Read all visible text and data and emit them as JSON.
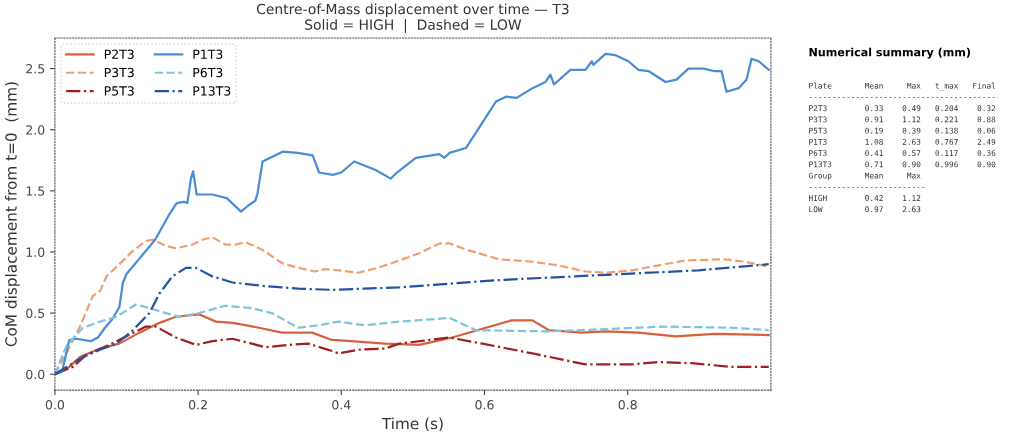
{
  "chart_data": {
    "type": "line",
    "title": "Centre-of-Mass displacement over time — T3\nSolid = HIGH  |  Dashed = LOW",
    "xlabel": "Time (s)",
    "ylabel": "CoM displacement from t=0  (mm)",
    "xlim": [
      0,
      1.0
    ],
    "ylim": [
      -0.13,
      2.75
    ],
    "xticks": [
      {
        "value": 0,
        "label": "0.0"
      },
      0.2,
      0.4,
      0.6,
      0.8
    ],
    "yticks": [
      {
        "value": 0,
        "label": "0.0"
      },
      0.5,
      {
        "value": 1,
        "label": "1.0"
      },
      1.5,
      {
        "value": 2,
        "label": "2.0"
      },
      2.5
    ],
    "grid": false,
    "legend": "top left",
    "marker": "none",
    "series": [
      {
        "name": "P2T3",
        "color": "#d6603c",
        "line_style": "solid",
        "x": [
          0,
          0.016,
          0.035,
          0.063,
          0.09,
          0.118,
          0.146,
          0.169,
          0.201,
          0.225,
          0.248,
          0.285,
          0.317,
          0.359,
          0.387,
          0.414,
          0.461,
          0.509,
          0.555,
          0.602,
          0.638,
          0.667,
          0.69,
          0.736,
          0.769,
          0.815,
          0.867,
          0.922,
          0.997
        ],
        "values": [
          0,
          0.04,
          0.14,
          0.21,
          0.25,
          0.34,
          0.42,
          0.47,
          0.49,
          0.43,
          0.42,
          0.38,
          0.34,
          0.34,
          0.28,
          0.27,
          0.25,
          0.24,
          0.3,
          0.38,
          0.44,
          0.44,
          0.36,
          0.34,
          0.35,
          0.34,
          0.31,
          0.33,
          0.32
        ]
      },
      {
        "name": "P3T3",
        "color": "#f0a070",
        "line_style": "dashed",
        "x": [
          0,
          0.016,
          0.035,
          0.053,
          0.063,
          0.072,
          0.09,
          0.109,
          0.127,
          0.137,
          0.155,
          0.169,
          0.192,
          0.206,
          0.22,
          0.238,
          0.252,
          0.266,
          0.289,
          0.317,
          0.34,
          0.363,
          0.377,
          0.396,
          0.424,
          0.451,
          0.481,
          0.509,
          0.537,
          0.551,
          0.574,
          0.62,
          0.667,
          0.704,
          0.741,
          0.769,
          0.806,
          0.843,
          0.881,
          0.936,
          0.964,
          0.997
        ],
        "values": [
          0,
          0.17,
          0.39,
          0.64,
          0.68,
          0.8,
          0.9,
          1.01,
          1.09,
          1.1,
          1.05,
          1.03,
          1.06,
          1.1,
          1.12,
          1.06,
          1.06,
          1.08,
          1.02,
          0.91,
          0.87,
          0.84,
          0.86,
          0.85,
          0.83,
          0.87,
          0.93,
          0.99,
          1.07,
          1.07,
          1.02,
          0.94,
          0.92,
          0.89,
          0.84,
          0.83,
          0.85,
          0.89,
          0.93,
          0.94,
          0.92,
          0.88
        ]
      },
      {
        "name": "P5T3",
        "color": "#a02020",
        "line_style": "dashdot",
        "x": [
          0,
          0.025,
          0.044,
          0.072,
          0.1,
          0.127,
          0.141,
          0.169,
          0.197,
          0.22,
          0.248,
          0.275,
          0.294,
          0.326,
          0.354,
          0.387,
          0.396,
          0.424,
          0.461,
          0.481,
          0.551,
          0.597,
          0.667,
          0.741,
          0.806,
          0.843,
          0.889,
          0.945,
          0.997
        ],
        "values": [
          0,
          0.06,
          0.16,
          0.23,
          0.31,
          0.39,
          0.39,
          0.3,
          0.24,
          0.27,
          0.29,
          0.25,
          0.22,
          0.24,
          0.25,
          0.19,
          0.17,
          0.2,
          0.21,
          0.25,
          0.3,
          0.25,
          0.17,
          0.08,
          0.08,
          0.1,
          0.09,
          0.06,
          0.06
        ]
      },
      {
        "name": "P1T3",
        "color": "#4a8cd6",
        "line_style": "solid",
        "x": [
          0,
          0.01,
          0.02,
          0.03,
          0.04,
          0.05,
          0.06,
          0.07,
          0.08,
          0.09,
          0.095,
          0.1,
          0.12,
          0.14,
          0.16,
          0.17,
          0.18,
          0.185,
          0.19,
          0.193,
          0.198,
          0.22,
          0.24,
          0.26,
          0.27,
          0.28,
          0.283,
          0.29,
          0.318,
          0.339,
          0.36,
          0.369,
          0.388,
          0.4,
          0.418,
          0.448,
          0.469,
          0.476,
          0.504,
          0.537,
          0.544,
          0.551,
          0.574,
          0.616,
          0.63,
          0.645,
          0.667,
          0.685,
          0.692,
          0.697,
          0.72,
          0.741,
          0.75,
          0.752,
          0.769,
          0.783,
          0.801,
          0.815,
          0.829,
          0.853,
          0.868,
          0.885,
          0.906,
          0.92,
          0.931,
          0.938,
          0.955,
          0.966,
          0.973,
          0.983,
          0.997
        ],
        "values": [
          0,
          0.02,
          0.28,
          0.29,
          0.28,
          0.27,
          0.3,
          0.38,
          0.45,
          0.55,
          0.75,
          0.82,
          0.96,
          1.1,
          1.31,
          1.4,
          1.41,
          1.4,
          1.6,
          1.66,
          1.47,
          1.47,
          1.44,
          1.33,
          1.38,
          1.42,
          1.48,
          1.74,
          1.82,
          1.81,
          1.79,
          1.65,
          1.63,
          1.65,
          1.74,
          1.67,
          1.6,
          1.64,
          1.77,
          1.8,
          1.77,
          1.81,
          1.85,
          2.23,
          2.27,
          2.26,
          2.34,
          2.39,
          2.45,
          2.37,
          2.49,
          2.49,
          2.56,
          2.53,
          2.62,
          2.61,
          2.56,
          2.49,
          2.48,
          2.39,
          2.41,
          2.5,
          2.5,
          2.48,
          2.48,
          2.31,
          2.34,
          2.41,
          2.58,
          2.56,
          2.49
        ]
      },
      {
        "name": "P6T3",
        "color": "#7cc4e0",
        "line_style": "dashed",
        "x": [
          0,
          0.016,
          0.039,
          0.063,
          0.086,
          0.113,
          0.132,
          0.155,
          0.174,
          0.201,
          0.238,
          0.275,
          0.303,
          0.34,
          0.368,
          0.396,
          0.433,
          0.481,
          0.551,
          0.588,
          0.69,
          0.853,
          0.945,
          0.997
        ],
        "values": [
          0,
          0.23,
          0.38,
          0.43,
          0.47,
          0.57,
          0.54,
          0.5,
          0.47,
          0.5,
          0.56,
          0.54,
          0.5,
          0.38,
          0.4,
          0.43,
          0.4,
          0.43,
          0.46,
          0.36,
          0.35,
          0.39,
          0.38,
          0.36
        ]
      },
      {
        "name": "P13T3",
        "color": "#2352a0",
        "line_style": "dashdot",
        "x": [
          0,
          0.039,
          0.063,
          0.086,
          0.109,
          0.132,
          0.146,
          0.164,
          0.183,
          0.197,
          0.22,
          0.248,
          0.294,
          0.34,
          0.387,
          0.433,
          0.481,
          0.62,
          0.76,
          0.899,
          0.997
        ],
        "values": [
          0,
          0.14,
          0.2,
          0.25,
          0.36,
          0.5,
          0.66,
          0.8,
          0.87,
          0.87,
          0.8,
          0.75,
          0.72,
          0.7,
          0.69,
          0.7,
          0.71,
          0.77,
          0.81,
          0.85,
          0.9
        ]
      }
    ],
    "annotations": [
      "Numerical summary (mm)",
      "Plate       Mean     Max   t_max   Final",
      "----------------------------------------",
      "P2T3        0.33    0.49   0.204    0.32",
      "P3T3        0.91    1.12   0.221    0.88",
      "P5T3        0.19    0.39   0.138    0.06",
      "P1T3        1.08    2.63   0.767    2.49",
      "P6T3        0.41    0.57   0.117    0.36",
      "P13T3       0.71    0.90   0.996    0.90",
      "Group       Mean     Max",
      "-------------------------",
      "HIGH        0.42    1.12",
      "LOW         0.97    2.63"
    ]
  }
}
